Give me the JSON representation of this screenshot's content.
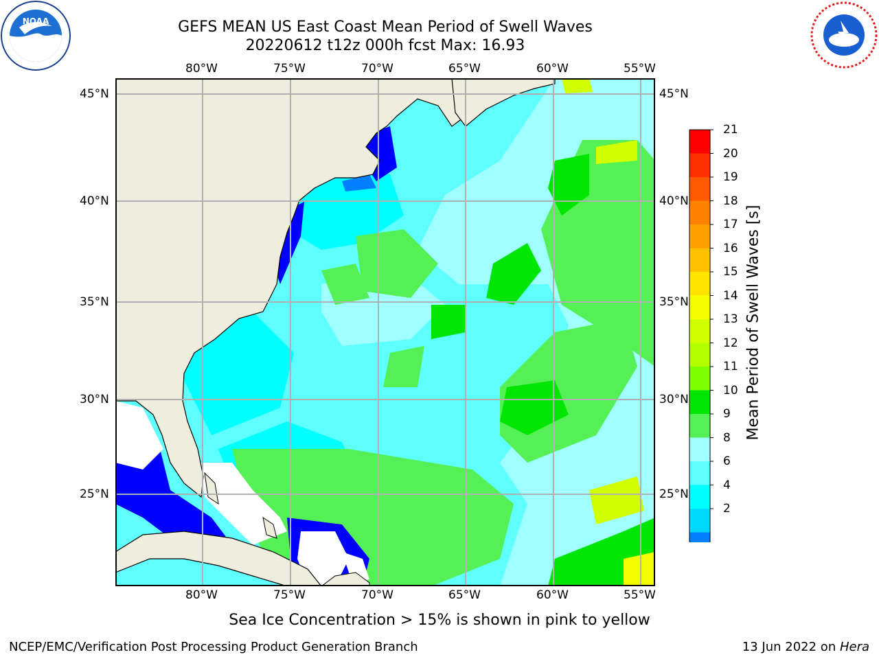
{
  "title": {
    "line1": "GEFS MEAN US East Coast Mean Period of Swell Waves",
    "line2": "20220612 t12z 000h fcst   Max: 16.93"
  },
  "logos": {
    "left": "noaa-logo",
    "right": "national-weather-service-logo"
  },
  "map": {
    "lon_labels": [
      "80°W",
      "75°W",
      "70°W",
      "65°W",
      "60°W",
      "55°W"
    ],
    "lat_labels": [
      "45°N",
      "40°N",
      "35°N",
      "30°N",
      "25°N"
    ],
    "land_color": "#efedde",
    "grid_color": "#b0b0b0"
  },
  "colorbar": {
    "title": "Mean Period of Swell Waves [s]",
    "labels": [
      "21",
      "20",
      "19",
      "18",
      "17",
      "16",
      "15",
      "14",
      "13",
      "12",
      "11",
      "10",
      "9",
      "8",
      "6",
      "4",
      "2"
    ],
    "colors": [
      "#ff0000",
      "#ff3000",
      "#ff5a00",
      "#ff8000",
      "#ffa000",
      "#ffc000",
      "#ffe400",
      "#f4ff00",
      "#d2ff00",
      "#b4ff00",
      "#7eff00",
      "#00e600",
      "#55f055",
      "#a0ffff",
      "#5effff",
      "#00ffff",
      "#00d8ff",
      "#0080ff"
    ],
    "extend_color": "#0000ff"
  },
  "note": "Sea Ice Concentration > 15% is shown in pink to yellow",
  "footer": {
    "left": "NCEP/EMC/Verification Post Processing Product Generation Branch",
    "right_date": "13 Jun 2022 on ",
    "right_host": "Hera"
  }
}
